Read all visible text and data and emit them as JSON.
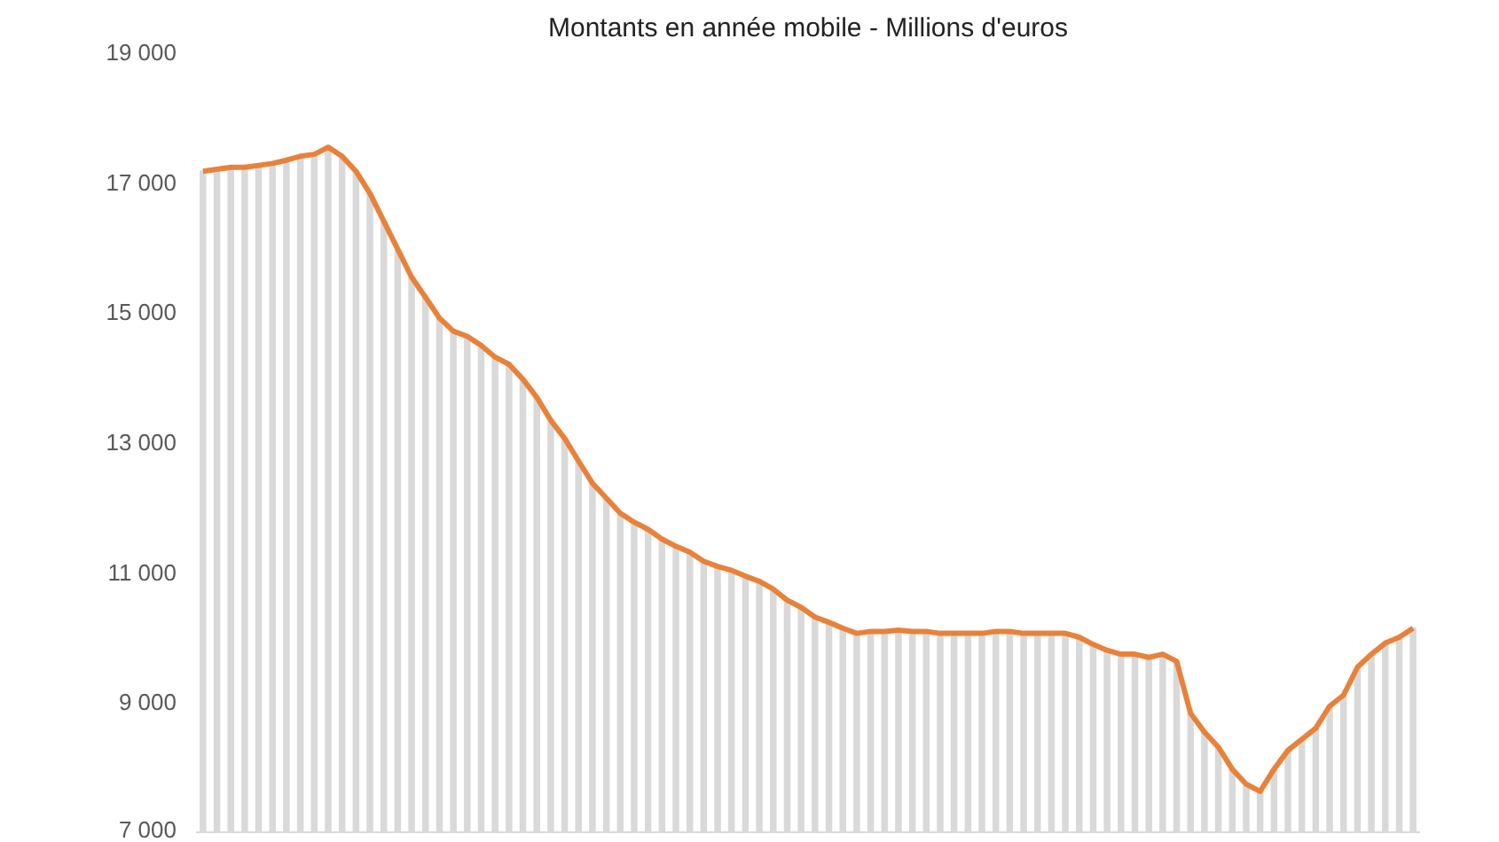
{
  "chart_data": {
    "type": "line",
    "title": "Montants en année mobile - Millions d'euros",
    "categories": [
      null,
      null,
      null,
      null,
      null,
      null,
      null,
      null,
      null,
      null,
      null,
      null,
      null,
      null,
      null,
      null,
      null,
      null,
      null,
      null,
      null,
      null,
      null,
      null,
      null,
      null,
      null,
      null,
      null,
      null,
      null,
      null,
      null,
      null,
      null,
      null,
      null,
      null,
      null,
      null,
      null,
      null,
      null,
      null,
      null,
      null,
      null,
      null,
      null,
      null,
      null,
      null,
      null,
      null,
      null,
      null,
      null,
      null,
      null,
      null,
      null,
      null,
      null,
      null,
      null,
      null,
      null,
      null,
      null,
      null,
      null,
      null,
      null,
      null,
      null,
      null,
      null,
      null,
      null,
      null,
      null,
      null,
      null,
      null,
      null,
      null,
      null,
      null
    ],
    "series": [
      {
        "type": "bar",
        "color": "#d9d9d9",
        "values": [
          17170,
          17200,
          17230,
          17230,
          17260,
          17290,
          17340,
          17400,
          17430,
          17540,
          17400,
          17170,
          16830,
          16400,
          15970,
          15540,
          15230,
          14910,
          14710,
          14630,
          14490,
          14310,
          14200,
          13970,
          13690,
          13340,
          13060,
          12710,
          12370,
          12140,
          11910,
          11770,
          11660,
          11510,
          11400,
          11310,
          11170,
          11090,
          11030,
          10940,
          10860,
          10740,
          10570,
          10460,
          10310,
          10230,
          10140,
          10060,
          10090,
          10090,
          10110,
          10090,
          10090,
          10060,
          10060,
          10060,
          10060,
          10090,
          10090,
          10060,
          10060,
          10060,
          10060,
          10000,
          9890,
          9800,
          9740,
          9740,
          9690,
          9740,
          9630,
          8830,
          8540,
          8310,
          7970,
          7740,
          7630,
          7970,
          8260,
          8430,
          8600,
          8940,
          9110,
          9540,
          9740,
          9910,
          10000,
          10140
        ]
      },
      {
        "color": "#e8823a",
        "values": [
          17170,
          17200,
          17230,
          17230,
          17260,
          17290,
          17340,
          17400,
          17430,
          17540,
          17400,
          17170,
          16830,
          16400,
          15970,
          15540,
          15230,
          14910,
          14710,
          14630,
          14490,
          14310,
          14200,
          13970,
          13690,
          13340,
          13060,
          12710,
          12370,
          12140,
          11910,
          11770,
          11660,
          11510,
          11400,
          11310,
          11170,
          11090,
          11030,
          10940,
          10860,
          10740,
          10570,
          10460,
          10310,
          10230,
          10140,
          10060,
          10090,
          10090,
          10110,
          10090,
          10090,
          10060,
          10060,
          10060,
          10060,
          10090,
          10090,
          10060,
          10060,
          10060,
          10060,
          10000,
          9890,
          9800,
          9740,
          9740,
          9690,
          9740,
          9630,
          8830,
          8540,
          8310,
          7970,
          7740,
          7630,
          7970,
          8260,
          8430,
          8600,
          8940,
          9110,
          9540,
          9740,
          9910,
          10000,
          10140
        ]
      }
    ],
    "ylim": [
      7000,
      19000
    ],
    "yticks": [
      {
        "value": 7000,
        "label": "7 000"
      },
      {
        "value": 9000,
        "label": "9 000"
      },
      {
        "value": 11000,
        "label": "11 000"
      },
      {
        "value": 13000,
        "label": "13 000"
      },
      {
        "value": 15000,
        "label": "15 000"
      },
      {
        "value": 17000,
        "label": "17 000"
      },
      {
        "value": 19000,
        "label": "19 000"
      }
    ],
    "grid": false
  }
}
